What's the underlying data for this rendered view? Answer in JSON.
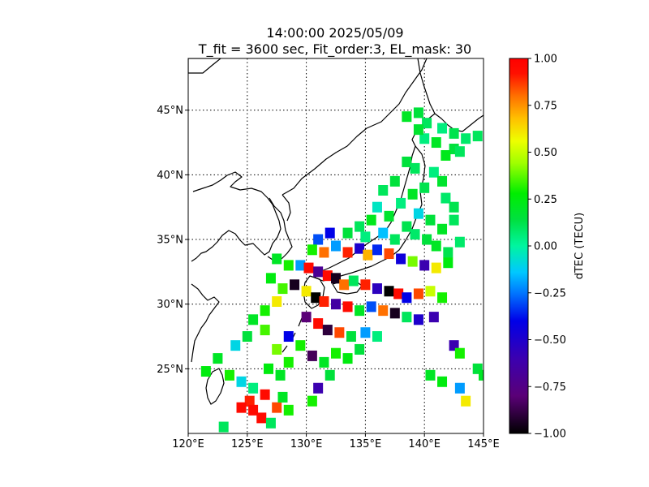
{
  "chart_data": {
    "type": "heatmap",
    "title_line1": "14:00:00 2025/05/09",
    "title_line2": "T_fit = 3600 sec, Fit_order:3, EL_mask: 30",
    "projection": "map",
    "x_ticks": [
      "120°E",
      "125°E",
      "130°E",
      "135°E",
      "140°E",
      "145°E"
    ],
    "x_tick_values": [
      120,
      125,
      130,
      135,
      140,
      145
    ],
    "y_ticks": [
      "25°N",
      "30°N",
      "35°N",
      "40°N",
      "45°N"
    ],
    "y_tick_values": [
      25,
      30,
      35,
      40,
      45
    ],
    "xlim": [
      120,
      145
    ],
    "ylim": [
      20,
      49
    ],
    "colorbar": {
      "label": "dTEC (TECU)",
      "min": -1.0,
      "max": 1.0,
      "ticks": [
        "1.00",
        "0.75",
        "0.50",
        "0.25",
        "0.00",
        "−0.25",
        "−0.50",
        "−0.75",
        "−1.00"
      ],
      "tick_values": [
        1.0,
        0.75,
        0.5,
        0.25,
        0.0,
        -0.25,
        -0.5,
        -0.75,
        -1.0
      ],
      "colormap": "nipy_spectral-like"
    },
    "points": [
      [
        138.5,
        44.5,
        0.2
      ],
      [
        139.5,
        44.8,
        0.15
      ],
      [
        140.2,
        44.0,
        0.1
      ],
      [
        141.5,
        43.6,
        0.05
      ],
      [
        142.5,
        43.2,
        0.12
      ],
      [
        143.5,
        42.8,
        0.08
      ],
      [
        144.5,
        43.0,
        0.1
      ],
      [
        141.0,
        42.5,
        0.2
      ],
      [
        142.5,
        42.0,
        0.15
      ],
      [
        140.0,
        42.8,
        0.05
      ],
      [
        139.5,
        43.5,
        0.18
      ],
      [
        143.0,
        41.8,
        0.1
      ],
      [
        141.8,
        41.5,
        0.22
      ],
      [
        138.5,
        41.0,
        0.15
      ],
      [
        139.2,
        40.5,
        0.1
      ],
      [
        140.8,
        40.2,
        0.05
      ],
      [
        141.5,
        39.5,
        0.18
      ],
      [
        140.0,
        39.0,
        0.12
      ],
      [
        139.0,
        38.5,
        0.2
      ],
      [
        141.8,
        38.2,
        0.08
      ],
      [
        142.5,
        37.5,
        0.12
      ],
      [
        137.5,
        39.5,
        0.15
      ],
      [
        136.5,
        38.8,
        0.1
      ],
      [
        138.0,
        37.8,
        0.05
      ],
      [
        139.5,
        37.0,
        -0.1
      ],
      [
        140.5,
        36.5,
        0.15
      ],
      [
        141.5,
        35.8,
        0.2
      ],
      [
        142.5,
        36.5,
        0.1
      ],
      [
        136.0,
        37.5,
        -0.05
      ],
      [
        137.0,
        36.8,
        0.18
      ],
      [
        138.5,
        36.0,
        0.12
      ],
      [
        139.2,
        35.4,
        0.08
      ],
      [
        140.2,
        35.0,
        0.15
      ],
      [
        141.0,
        34.5,
        0.2
      ],
      [
        135.5,
        36.5,
        0.22
      ],
      [
        134.5,
        36.0,
        0.1
      ],
      [
        133.5,
        35.5,
        0.15
      ],
      [
        135.0,
        35.2,
        0.05
      ],
      [
        136.5,
        35.5,
        -0.15
      ],
      [
        137.5,
        35.0,
        0.1
      ],
      [
        142.0,
        34.0,
        0.12
      ],
      [
        143.0,
        34.8,
        0.08
      ],
      [
        131.0,
        35.0,
        -0.3
      ],
      [
        132.0,
        35.5,
        -0.4
      ],
      [
        130.5,
        34.2,
        0.3
      ],
      [
        131.5,
        34.0,
        0.8
      ],
      [
        132.5,
        34.5,
        -0.2
      ],
      [
        133.5,
        34.0,
        0.9
      ],
      [
        134.5,
        34.3,
        -0.5
      ],
      [
        135.2,
        33.8,
        0.7
      ],
      [
        136.0,
        34.2,
        -0.35
      ],
      [
        137.0,
        33.9,
        0.85
      ],
      [
        138.0,
        33.5,
        -0.45
      ],
      [
        139.0,
        33.3,
        0.4
      ],
      [
        140.0,
        33.0,
        -0.6
      ],
      [
        141.0,
        32.8,
        0.6
      ],
      [
        142.0,
        33.2,
        0.25
      ],
      [
        129.5,
        33.0,
        -0.2
      ],
      [
        130.2,
        32.8,
        0.95
      ],
      [
        131.0,
        32.5,
        -0.7
      ],
      [
        131.8,
        32.2,
        0.95
      ],
      [
        132.5,
        32.0,
        -0.95
      ],
      [
        133.2,
        31.5,
        0.8
      ],
      [
        134.0,
        31.8,
        0.1
      ],
      [
        135.0,
        31.5,
        0.9
      ],
      [
        136.0,
        31.2,
        -0.55
      ],
      [
        137.0,
        31.0,
        -1.0
      ],
      [
        137.8,
        30.8,
        0.95
      ],
      [
        138.5,
        30.5,
        -0.4
      ],
      [
        139.5,
        30.8,
        0.85
      ],
      [
        140.5,
        31.0,
        0.5
      ],
      [
        141.5,
        30.5,
        0.3
      ],
      [
        129.0,
        31.5,
        -0.95
      ],
      [
        130.0,
        31.0,
        0.6
      ],
      [
        130.8,
        30.5,
        -1.0
      ],
      [
        131.5,
        30.2,
        0.9
      ],
      [
        132.5,
        30.0,
        -0.65
      ],
      [
        133.5,
        29.8,
        0.95
      ],
      [
        134.5,
        29.5,
        0.2
      ],
      [
        135.5,
        29.8,
        -0.3
      ],
      [
        136.5,
        29.5,
        0.8
      ],
      [
        137.5,
        29.3,
        -0.95
      ],
      [
        138.5,
        29.0,
        0.1
      ],
      [
        139.5,
        28.8,
        -0.5
      ],
      [
        140.8,
        29.0,
        -0.6
      ],
      [
        130.0,
        29.0,
        -0.8
      ],
      [
        131.0,
        28.5,
        0.95
      ],
      [
        131.8,
        28.0,
        -0.9
      ],
      [
        132.8,
        27.8,
        0.85
      ],
      [
        133.8,
        27.5,
        0.15
      ],
      [
        135.0,
        27.8,
        -0.2
      ],
      [
        136.0,
        27.5,
        0.05
      ],
      [
        128.5,
        27.5,
        -0.4
      ],
      [
        129.5,
        26.8,
        0.3
      ],
      [
        130.5,
        26.0,
        -0.85
      ],
      [
        131.5,
        25.5,
        0.2
      ],
      [
        132.5,
        26.2,
        0.3
      ],
      [
        133.5,
        25.8,
        0.25
      ],
      [
        134.5,
        26.5,
        0.15
      ],
      [
        127.5,
        33.5,
        0.2
      ],
      [
        128.5,
        33.0,
        0.3
      ],
      [
        127.0,
        32.0,
        0.25
      ],
      [
        128.0,
        31.2,
        0.35
      ],
      [
        127.5,
        30.2,
        0.6
      ],
      [
        126.5,
        29.5,
        0.3
      ],
      [
        125.5,
        28.8,
        0.2
      ],
      [
        126.5,
        28.0,
        0.35
      ],
      [
        125.0,
        27.5,
        0.15
      ],
      [
        124.0,
        26.8,
        -0.1
      ],
      [
        127.5,
        26.5,
        0.4
      ],
      [
        128.5,
        25.5,
        0.3
      ],
      [
        126.8,
        25.0,
        0.25
      ],
      [
        127.8,
        24.5,
        0.2
      ],
      [
        122.5,
        25.8,
        0.2
      ],
      [
        121.5,
        24.8,
        0.25
      ],
      [
        123.5,
        24.5,
        0.3
      ],
      [
        124.5,
        24.0,
        -0.1
      ],
      [
        125.5,
        23.5,
        0.05
      ],
      [
        126.5,
        23.0,
        0.95
      ],
      [
        125.2,
        22.5,
        0.9
      ],
      [
        127.5,
        22.0,
        0.85
      ],
      [
        128.5,
        21.8,
        0.3
      ],
      [
        126.2,
        21.2,
        0.95
      ],
      [
        127.0,
        20.8,
        0.1
      ],
      [
        123.0,
        20.5,
        0.1
      ],
      [
        130.5,
        22.5,
        0.3
      ],
      [
        131.0,
        23.5,
        -0.6
      ],
      [
        132.0,
        24.5,
        0.15
      ],
      [
        124.5,
        22.0,
        0.95
      ],
      [
        125.5,
        21.8,
        0.95
      ],
      [
        128.0,
        22.8,
        0.2
      ],
      [
        140.5,
        24.5,
        0.2
      ],
      [
        141.5,
        24.0,
        0.25
      ],
      [
        143.0,
        23.5,
        -0.2
      ],
      [
        143.5,
        22.5,
        0.6
      ],
      [
        142.5,
        26.8,
        -0.6
      ],
      [
        143.0,
        26.2,
        0.3
      ],
      [
        144.5,
        25.0,
        0.15
      ],
      [
        145.0,
        24.5,
        0.2
      ]
    ]
  }
}
